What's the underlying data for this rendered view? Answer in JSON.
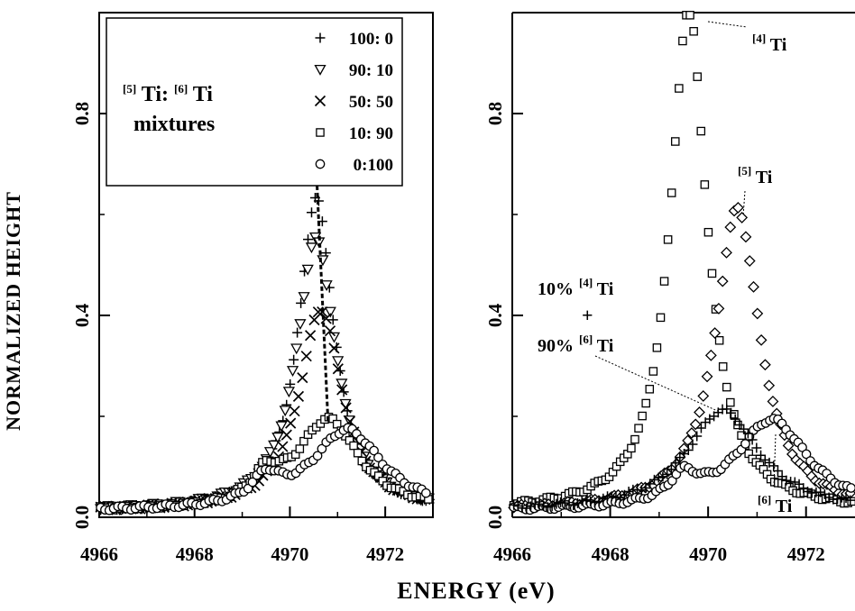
{
  "figure": {
    "xlabel": "ENERGY (eV)",
    "ylabel": "NORMALIZED HEIGHT"
  },
  "chart_data": [
    {
      "type": "scatter",
      "panel": "left",
      "xlim": [
        4966,
        4973
      ],
      "ylim": [
        0,
        1.0
      ],
      "x_ticks": [
        "4966",
        "4968",
        "4970",
        "4972"
      ],
      "y_ticks": [
        "0.0",
        "0.4",
        "0.8"
      ],
      "y_tick_values": [
        0.0,
        0.4,
        0.8
      ],
      "legend_title_line1_sup1": "[5]",
      "legend_title_line1_text1": " Ti: ",
      "legend_title_line1_sup2": "[6]",
      "legend_title_line1_text2": " Ti",
      "legend_title_line2": "mixtures",
      "legend_location": "top-left",
      "dashed_line": {
        "x": [
          4970.5,
          4970.8
        ],
        "y": [
          0.8,
          0.19
        ]
      },
      "series": [
        {
          "name": "100: 0",
          "marker": "+",
          "amplitude": 0.62,
          "center": 4970.55,
          "width": 0.45
        },
        {
          "name": "90: 10",
          "marker": "triangle-down",
          "amplitude": 0.54,
          "center": 4970.55,
          "width": 0.5
        },
        {
          "name": "50: 50",
          "marker": "x",
          "amplitude": 0.4,
          "center": 4970.65,
          "width": 0.55
        },
        {
          "name": "10: 90",
          "marker": "square",
          "amplitude": 0.18,
          "center": 4970.8,
          "width": 0.8
        },
        {
          "name": "0:100",
          "marker": "circle",
          "amplitude": 0.16,
          "center": 4971.2,
          "width": 0.9
        }
      ]
    },
    {
      "type": "scatter",
      "panel": "right",
      "xlim": [
        4966,
        4973
      ],
      "ylim": [
        0,
        1.0
      ],
      "x_ticks": [
        "4966",
        "4968",
        "4970",
        "4972"
      ],
      "y_ticks": [
        "0.0",
        "0.4",
        "0.8"
      ],
      "y_tick_values": [
        0.0,
        0.4,
        0.8
      ],
      "series": [
        {
          "label_sup": "[4]",
          "label_text": " Ti",
          "marker": "square",
          "amplitude": 1.0,
          "center": 4969.6,
          "width": 0.45
        },
        {
          "label_sup": "[5]",
          "label_text": " Ti",
          "marker": "diamond",
          "amplitude": 0.6,
          "center": 4970.6,
          "width": 0.55
        },
        {
          "label_sup": "[6]",
          "label_text": " Ti",
          "marker": "circle",
          "amplitude": 0.18,
          "center": 4971.3,
          "width": 0.9
        },
        {
          "marker": "+",
          "amplitude": 0.2,
          "center": 4970.3,
          "width": 0.9
        }
      ],
      "mixture_label": {
        "line1_pct": "10%",
        "line1_sup": "[4]",
        "line1_text": " Ti",
        "marker": "+",
        "line2_pct": "90%",
        "line2_sup": "[6]",
        "line2_text": " Ti"
      }
    }
  ]
}
